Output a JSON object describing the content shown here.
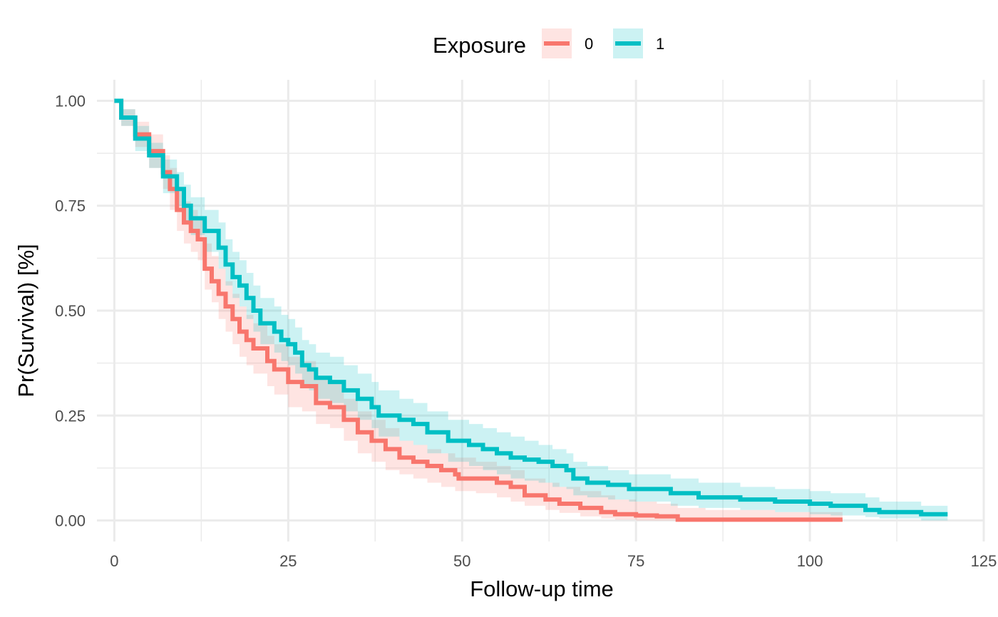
{
  "chart_data": {
    "type": "line",
    "step": true,
    "xlabel": "Follow-up time",
    "ylabel": "Pr(Survival) [%]",
    "xlim": [
      -2.5,
      125
    ],
    "ylim": [
      -0.05,
      1.05
    ],
    "x_ticks": [
      0,
      25,
      50,
      75,
      100,
      125
    ],
    "x_tick_labels": [
      "0",
      "25",
      "50",
      "75",
      "100",
      "125"
    ],
    "y_ticks": [
      0,
      0.25,
      0.5,
      0.75,
      1
    ],
    "y_tick_labels": [
      "0.00",
      "0.25",
      "0.50",
      "0.75",
      "1.00"
    ],
    "grid": true,
    "legend": {
      "title": "Exposure",
      "position": "top"
    },
    "series": [
      {
        "name": "0",
        "color": "#F8766D",
        "points": [
          [
            0,
            1.0
          ],
          [
            1,
            0.96
          ],
          [
            3,
            0.92
          ],
          [
            5,
            0.88
          ],
          [
            7,
            0.83
          ],
          [
            8,
            0.79
          ],
          [
            9,
            0.74
          ],
          [
            10,
            0.71
          ],
          [
            11,
            0.69
          ],
          [
            12,
            0.67
          ],
          [
            13,
            0.6
          ],
          [
            14,
            0.57
          ],
          [
            15,
            0.54
          ],
          [
            16,
            0.51
          ],
          [
            17,
            0.48
          ],
          [
            18,
            0.45
          ],
          [
            19,
            0.43
          ],
          [
            20,
            0.41
          ],
          [
            22,
            0.38
          ],
          [
            23,
            0.36
          ],
          [
            25,
            0.33
          ],
          [
            27,
            0.32
          ],
          [
            29,
            0.28
          ],
          [
            31,
            0.27
          ],
          [
            33,
            0.24
          ],
          [
            35,
            0.21
          ],
          [
            37,
            0.19
          ],
          [
            39,
            0.17
          ],
          [
            41,
            0.15
          ],
          [
            43,
            0.14
          ],
          [
            45,
            0.13
          ],
          [
            47,
            0.12
          ],
          [
            49,
            0.11
          ],
          [
            49.5,
            0.1
          ],
          [
            52,
            0.1
          ],
          [
            55,
            0.09
          ],
          [
            57,
            0.08
          ],
          [
            59,
            0.06
          ],
          [
            62,
            0.05
          ],
          [
            64,
            0.04
          ],
          [
            67,
            0.03
          ],
          [
            70,
            0.02
          ],
          [
            72,
            0.015
          ],
          [
            75,
            0.012
          ],
          [
            78,
            0.01
          ],
          [
            81,
            0.002
          ],
          [
            85,
            0.002
          ],
          [
            95,
            0.002
          ],
          [
            104.7,
            0.002
          ]
        ],
        "ci_upper": [
          [
            0,
            1.0
          ],
          [
            1,
            0.98
          ],
          [
            3,
            0.95
          ],
          [
            5,
            0.92
          ],
          [
            7,
            0.87
          ],
          [
            8,
            0.84
          ],
          [
            9,
            0.79
          ],
          [
            10,
            0.76
          ],
          [
            11,
            0.74
          ],
          [
            12,
            0.72
          ],
          [
            13,
            0.66
          ],
          [
            14,
            0.63
          ],
          [
            15,
            0.6
          ],
          [
            16,
            0.57
          ],
          [
            17,
            0.54
          ],
          [
            18,
            0.51
          ],
          [
            19,
            0.49
          ],
          [
            20,
            0.47
          ],
          [
            22,
            0.44
          ],
          [
            23,
            0.42
          ],
          [
            25,
            0.39
          ],
          [
            27,
            0.38
          ],
          [
            29,
            0.34
          ],
          [
            31,
            0.33
          ],
          [
            33,
            0.29
          ],
          [
            35,
            0.26
          ],
          [
            37,
            0.24
          ],
          [
            39,
            0.22
          ],
          [
            41,
            0.19
          ],
          [
            43,
            0.18
          ],
          [
            45,
            0.17
          ],
          [
            47,
            0.16
          ],
          [
            49,
            0.15
          ],
          [
            52,
            0.14
          ],
          [
            55,
            0.13
          ],
          [
            57,
            0.12
          ],
          [
            59,
            0.1
          ],
          [
            62,
            0.09
          ],
          [
            64,
            0.08
          ],
          [
            67,
            0.07
          ],
          [
            70,
            0.06
          ],
          [
            72,
            0.05
          ],
          [
            75,
            0.045
          ],
          [
            78,
            0.04
          ],
          [
            81,
            0.03
          ],
          [
            85,
            0.025
          ],
          [
            95,
            0.02
          ],
          [
            104.7,
            0.02
          ]
        ],
        "ci_lower": [
          [
            0,
            1.0
          ],
          [
            1,
            0.94
          ],
          [
            3,
            0.89
          ],
          [
            5,
            0.84
          ],
          [
            7,
            0.79
          ],
          [
            8,
            0.74
          ],
          [
            9,
            0.69
          ],
          [
            10,
            0.66
          ],
          [
            11,
            0.64
          ],
          [
            12,
            0.62
          ],
          [
            13,
            0.55
          ],
          [
            14,
            0.52
          ],
          [
            15,
            0.48
          ],
          [
            16,
            0.45
          ],
          [
            17,
            0.42
          ],
          [
            18,
            0.39
          ],
          [
            19,
            0.37
          ],
          [
            20,
            0.35
          ],
          [
            22,
            0.32
          ],
          [
            23,
            0.3
          ],
          [
            25,
            0.27
          ],
          [
            27,
            0.26
          ],
          [
            29,
            0.23
          ],
          [
            31,
            0.22
          ],
          [
            33,
            0.19
          ],
          [
            35,
            0.16
          ],
          [
            37,
            0.14
          ],
          [
            39,
            0.12
          ],
          [
            41,
            0.11
          ],
          [
            43,
            0.1
          ],
          [
            45,
            0.09
          ],
          [
            47,
            0.08
          ],
          [
            49,
            0.07
          ],
          [
            52,
            0.065
          ],
          [
            55,
            0.055
          ],
          [
            57,
            0.045
          ],
          [
            59,
            0.035
          ],
          [
            62,
            0.025
          ],
          [
            64,
            0.018
          ],
          [
            67,
            0.01
          ],
          [
            70,
            0.005
          ],
          [
            72,
            0.002
          ],
          [
            75,
            0.0
          ],
          [
            104.7,
            0.0
          ]
        ]
      },
      {
        "name": "1",
        "color": "#00BFC4",
        "points": [
          [
            0,
            1.0
          ],
          [
            1,
            0.96
          ],
          [
            3,
            0.91
          ],
          [
            5,
            0.87
          ],
          [
            7,
            0.82
          ],
          [
            9,
            0.79
          ],
          [
            10,
            0.75
          ],
          [
            11,
            0.72
          ],
          [
            13,
            0.69
          ],
          [
            15,
            0.65
          ],
          [
            16,
            0.61
          ],
          [
            17,
            0.58
          ],
          [
            18,
            0.56
          ],
          [
            19,
            0.53
          ],
          [
            20,
            0.5
          ],
          [
            21,
            0.47
          ],
          [
            23,
            0.45
          ],
          [
            24,
            0.43
          ],
          [
            25,
            0.42
          ],
          [
            26,
            0.4
          ],
          [
            27,
            0.37
          ],
          [
            28,
            0.36
          ],
          [
            29,
            0.34
          ],
          [
            31,
            0.33
          ],
          [
            33,
            0.31
          ],
          [
            35,
            0.29
          ],
          [
            37,
            0.27
          ],
          [
            38,
            0.25
          ],
          [
            41,
            0.24
          ],
          [
            43,
            0.23
          ],
          [
            45,
            0.21
          ],
          [
            48,
            0.19
          ],
          [
            51,
            0.18
          ],
          [
            53,
            0.17
          ],
          [
            55,
            0.16
          ],
          [
            57,
            0.15
          ],
          [
            59,
            0.145
          ],
          [
            61,
            0.14
          ],
          [
            63,
            0.13
          ],
          [
            65,
            0.12
          ],
          [
            66,
            0.1
          ],
          [
            68,
            0.09
          ],
          [
            71,
            0.085
          ],
          [
            74,
            0.075
          ],
          [
            80,
            0.065
          ],
          [
            84,
            0.055
          ],
          [
            90,
            0.05
          ],
          [
            95,
            0.045
          ],
          [
            100,
            0.04
          ],
          [
            103,
            0.035
          ],
          [
            108,
            0.025
          ],
          [
            110,
            0.02
          ],
          [
            116,
            0.015
          ],
          [
            119.8,
            0.015
          ]
        ],
        "ci_upper": [
          [
            0,
            1.0
          ],
          [
            1,
            0.98
          ],
          [
            3,
            0.94
          ],
          [
            5,
            0.9
          ],
          [
            7,
            0.86
          ],
          [
            9,
            0.83
          ],
          [
            10,
            0.8
          ],
          [
            11,
            0.77
          ],
          [
            13,
            0.74
          ],
          [
            15,
            0.71
          ],
          [
            16,
            0.67
          ],
          [
            17,
            0.64
          ],
          [
            18,
            0.62
          ],
          [
            19,
            0.59
          ],
          [
            20,
            0.56
          ],
          [
            21,
            0.53
          ],
          [
            23,
            0.51
          ],
          [
            24,
            0.49
          ],
          [
            25,
            0.48
          ],
          [
            26,
            0.46
          ],
          [
            27,
            0.43
          ],
          [
            28,
            0.42
          ],
          [
            29,
            0.4
          ],
          [
            31,
            0.39
          ],
          [
            33,
            0.37
          ],
          [
            35,
            0.35
          ],
          [
            37,
            0.33
          ],
          [
            38,
            0.31
          ],
          [
            41,
            0.29
          ],
          [
            43,
            0.28
          ],
          [
            45,
            0.26
          ],
          [
            48,
            0.24
          ],
          [
            51,
            0.23
          ],
          [
            53,
            0.22
          ],
          [
            55,
            0.21
          ],
          [
            57,
            0.2
          ],
          [
            59,
            0.19
          ],
          [
            61,
            0.18
          ],
          [
            63,
            0.17
          ],
          [
            65,
            0.16
          ],
          [
            66,
            0.14
          ],
          [
            68,
            0.13
          ],
          [
            71,
            0.12
          ],
          [
            74,
            0.11
          ],
          [
            80,
            0.1
          ],
          [
            84,
            0.09
          ],
          [
            90,
            0.08
          ],
          [
            95,
            0.075
          ],
          [
            100,
            0.07
          ],
          [
            103,
            0.065
          ],
          [
            108,
            0.055
          ],
          [
            110,
            0.045
          ],
          [
            116,
            0.035
          ],
          [
            119.8,
            0.035
          ]
        ],
        "ci_lower": [
          [
            0,
            1.0
          ],
          [
            1,
            0.94
          ],
          [
            3,
            0.88
          ],
          [
            5,
            0.84
          ],
          [
            7,
            0.78
          ],
          [
            9,
            0.75
          ],
          [
            10,
            0.71
          ],
          [
            11,
            0.68
          ],
          [
            13,
            0.64
          ],
          [
            15,
            0.6
          ],
          [
            16,
            0.56
          ],
          [
            17,
            0.53
          ],
          [
            18,
            0.51
          ],
          [
            19,
            0.48
          ],
          [
            20,
            0.45
          ],
          [
            21,
            0.42
          ],
          [
            23,
            0.4
          ],
          [
            24,
            0.38
          ],
          [
            25,
            0.37
          ],
          [
            26,
            0.35
          ],
          [
            27,
            0.32
          ],
          [
            28,
            0.31
          ],
          [
            29,
            0.29
          ],
          [
            31,
            0.28
          ],
          [
            33,
            0.26
          ],
          [
            35,
            0.24
          ],
          [
            37,
            0.22
          ],
          [
            38,
            0.2
          ],
          [
            41,
            0.19
          ],
          [
            43,
            0.18
          ],
          [
            45,
            0.16
          ],
          [
            48,
            0.14
          ],
          [
            51,
            0.13
          ],
          [
            53,
            0.12
          ],
          [
            55,
            0.11
          ],
          [
            57,
            0.1
          ],
          [
            59,
            0.095
          ],
          [
            61,
            0.09
          ],
          [
            63,
            0.08
          ],
          [
            65,
            0.075
          ],
          [
            66,
            0.06
          ],
          [
            68,
            0.055
          ],
          [
            71,
            0.05
          ],
          [
            74,
            0.045
          ],
          [
            80,
            0.035
          ],
          [
            84,
            0.03
          ],
          [
            90,
            0.025
          ],
          [
            95,
            0.02
          ],
          [
            100,
            0.015
          ],
          [
            103,
            0.012
          ],
          [
            108,
            0.008
          ],
          [
            110,
            0.005
          ],
          [
            116,
            0.0
          ],
          [
            119.8,
            0.0
          ]
        ]
      }
    ]
  }
}
